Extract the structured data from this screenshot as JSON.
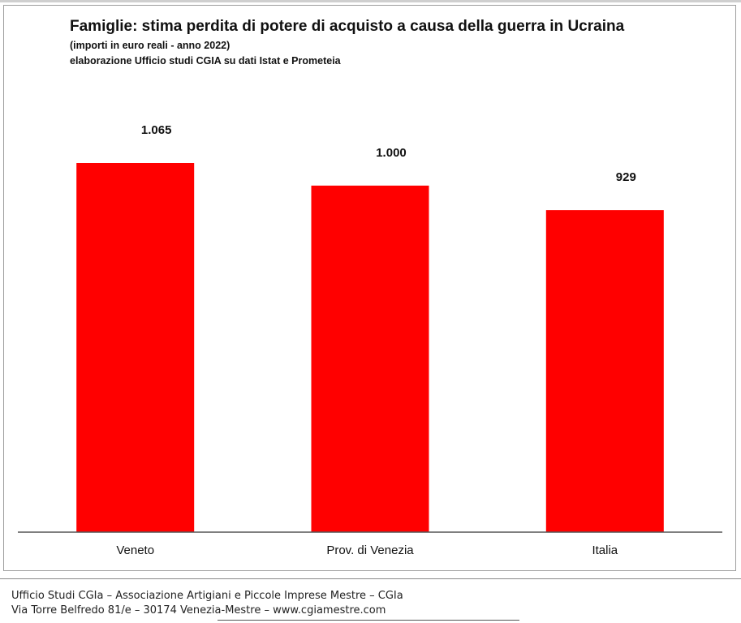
{
  "chart_data": {
    "type": "bar",
    "title": "Famiglie: stima perdita di potere di acquisto a causa della guerra in Ucraina",
    "subtitle": "(importi in euro reali - anno 2022)",
    "source": "elaborazione Ufficio studi CGIA su dati Istat e Prometeia",
    "categories": [
      "Veneto",
      "Prov. di Venezia",
      "Italia"
    ],
    "values": [
      1065,
      1000,
      929
    ],
    "value_labels": [
      "1.065",
      "1.000",
      "929"
    ],
    "bar_color": "#ff0000",
    "ylim": [
      0,
      1065
    ],
    "xlabel": "",
    "ylabel": "",
    "grid": false,
    "legend": "none"
  },
  "footer": {
    "line1": "Ufficio Studi CGIa – Associazione Artigiani e Piccole Imprese Mestre – CGIa",
    "line2": "Via Torre Belfredo 81/e – 30174 Venezia-Mestre – www.cgiamestre.com"
  }
}
